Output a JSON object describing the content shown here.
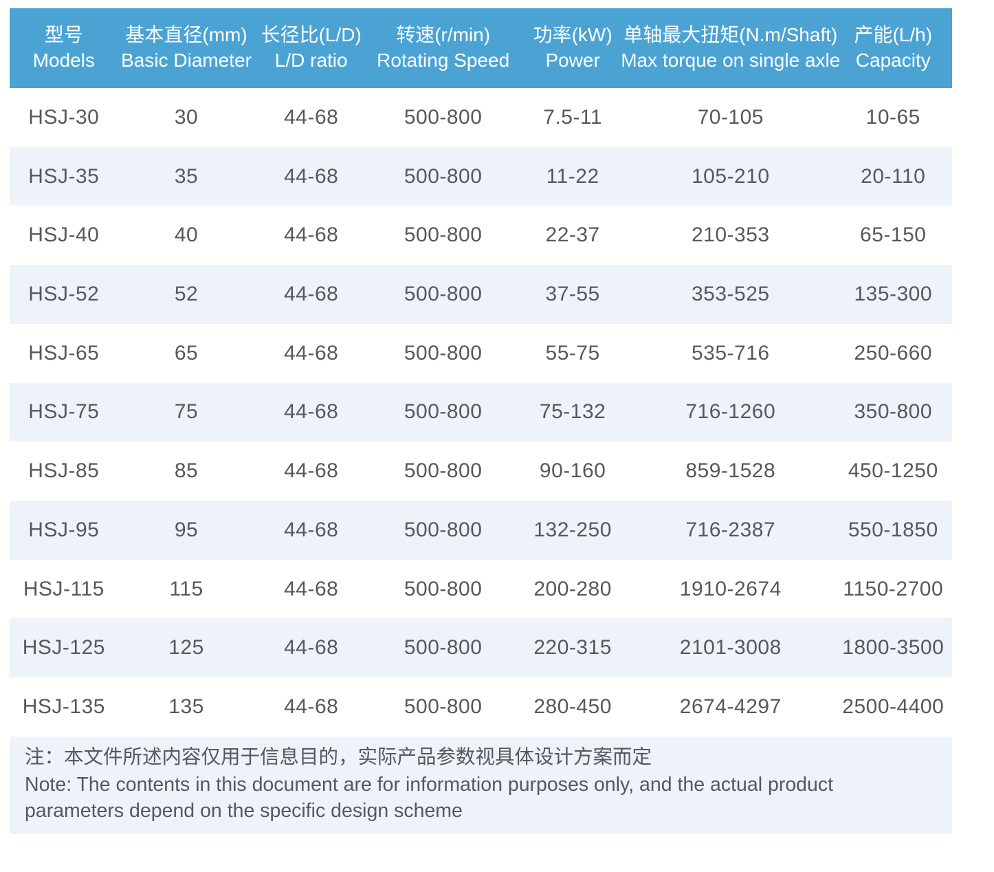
{
  "table": {
    "columns": [
      {
        "key": "models",
        "zh": "型号",
        "en": "Models"
      },
      {
        "key": "basic-diameter",
        "zh": "基本直径(mm)",
        "en": "Basic Diameter"
      },
      {
        "key": "ld-ratio",
        "zh": "长径比(L/D)",
        "en": "L/D ratio"
      },
      {
        "key": "rotating-speed",
        "zh": "转速(r/min)",
        "en": "Rotating Speed"
      },
      {
        "key": "power",
        "zh": "功率(kW)",
        "en": "Power"
      },
      {
        "key": "max-torque",
        "zh": "单轴最大扭矩(N.m/Shaft)",
        "en": "Max torque on single axle"
      },
      {
        "key": "capacity",
        "zh": "产能(L/h)",
        "en": "Capacity"
      }
    ],
    "rows": [
      [
        "HSJ-30",
        "30",
        "44-68",
        "500-800",
        "7.5-11",
        "70-105",
        "10-65"
      ],
      [
        "HSJ-35",
        "35",
        "44-68",
        "500-800",
        "11-22",
        "105-210",
        "20-110"
      ],
      [
        "HSJ-40",
        "40",
        "44-68",
        "500-800",
        "22-37",
        "210-353",
        "65-150"
      ],
      [
        "HSJ-52",
        "52",
        "44-68",
        "500-800",
        "37-55",
        "353-525",
        "135-300"
      ],
      [
        "HSJ-65",
        "65",
        "44-68",
        "500-800",
        "55-75",
        "535-716",
        "250-660"
      ],
      [
        "HSJ-75",
        "75",
        "44-68",
        "500-800",
        "75-132",
        "716-1260",
        "350-800"
      ],
      [
        "HSJ-85",
        "85",
        "44-68",
        "500-800",
        "90-160",
        "859-1528",
        "450-1250"
      ],
      [
        "HSJ-95",
        "95",
        "44-68",
        "500-800",
        "132-250",
        "716-2387",
        "550-1850"
      ],
      [
        "HSJ-115",
        "115",
        "44-68",
        "500-800",
        "200-280",
        "1910-2674",
        "1150-2700"
      ],
      [
        "HSJ-125",
        "125",
        "44-68",
        "500-800",
        "220-315",
        "2101-3008",
        "1800-3500"
      ],
      [
        "HSJ-135",
        "135",
        "44-68",
        "500-800",
        "280-450",
        "2674-4297",
        "2500-4400"
      ]
    ]
  },
  "note": {
    "zh": "注：本文件所述内容仅用于信息目的，实际产品参数视具体设计方案而定",
    "en": "Note: The contents in this document are for information purposes only, and the actual product parameters depend on the specific design scheme"
  },
  "colors": {
    "header_bg": "#4BA3D4",
    "header_text": "#FFFFFF",
    "stripe_bg": "#EEF2F9",
    "text": "#56585C"
  }
}
